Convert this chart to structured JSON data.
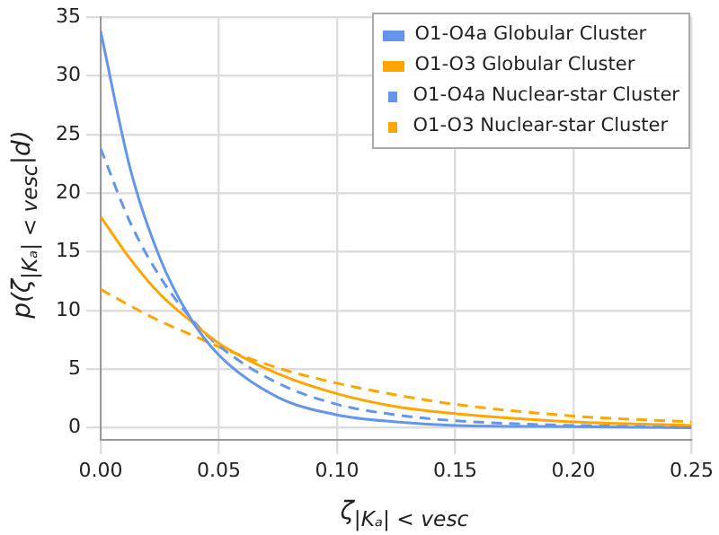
{
  "chart_data": {
    "type": "line",
    "xlabel": "ζ$_{|Kₐ| < v}$$_{esc}$",
    "ylabel": "p(ζ$_{|Kₐ| < v}$$_{esc}$|d)",
    "x": [
      0,
      0.0125,
      0.025,
      0.0375,
      0.05,
      0.075,
      0.1,
      0.125,
      0.15,
      0.2,
      0.25
    ],
    "series": [
      {
        "name": "O1-O4a Globular Cluster",
        "color": "#6495ed",
        "line_style": "solid",
        "values": [
          33.8,
          22.1,
          14.5,
          9.5,
          6.2,
          2.6,
          1.1,
          0.5,
          0.2,
          0.1,
          0
        ]
      },
      {
        "name": "O1-O3 Globular Cluster",
        "color": "#ffa500",
        "line_style": "solid",
        "values": [
          18,
          14.4,
          11.4,
          9.2,
          7.2,
          4.6,
          2.9,
          1.8,
          1.2,
          0.5,
          0.2
        ]
      },
      {
        "name": "O1-O4a Nuclear-star Cluster",
        "color": "#6495ed",
        "line_style": "dashed",
        "values": [
          23.8,
          17.5,
          12.9,
          9.5,
          7,
          3.8,
          2,
          1.1,
          0.6,
          0.2,
          0.1
        ]
      },
      {
        "name": "O1-O3 Nuclear-star Cluster",
        "color": "#ffa500",
        "line_style": "dashed",
        "values": [
          11.8,
          10.4,
          9.1,
          8,
          6.9,
          5.1,
          3.8,
          2.8,
          2,
          1,
          0.5
        ]
      }
    ],
    "xlim": [
      0,
      0.25
    ],
    "xticks": [
      {
        "value": 0,
        "label": "0.00"
      },
      {
        "value": 0.05,
        "label": "0.05"
      },
      {
        "value": 0.1,
        "label": "0.10"
      },
      {
        "value": 0.15,
        "label": "0.15"
      },
      {
        "value": 0.2,
        "label": "0.20"
      },
      {
        "value": 0.25,
        "label": "0.25"
      }
    ],
    "ylim": [
      -1,
      35
    ],
    "yticks": [
      0,
      5,
      10,
      15,
      20,
      25,
      30,
      35
    ],
    "grid": true,
    "legend": "top right",
    "marker": "none"
  }
}
